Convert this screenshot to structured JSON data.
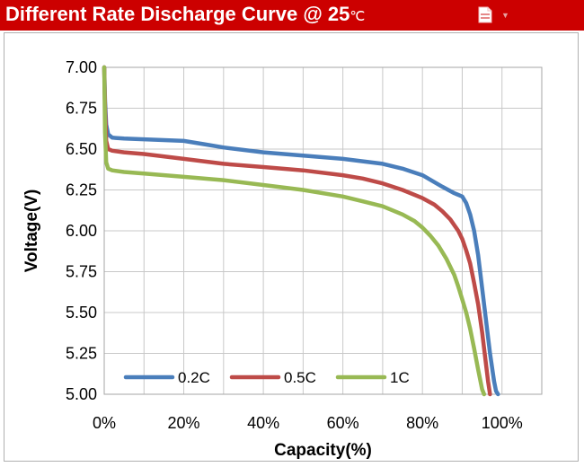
{
  "header": {
    "title": "Different Rate Discharge Curve @ 25",
    "title_unit": "℃",
    "background": "#cc0000",
    "icons": [
      "pdf-icon",
      "dropdown-arrow-icon"
    ]
  },
  "chart_data": {
    "type": "line",
    "title": "Different Rate Discharge Curve @ 25℃",
    "xlabel": "Capacity(%)",
    "ylabel": "Voltage(V)",
    "xlim": [
      0,
      110
    ],
    "ylim": [
      5.0,
      7.0
    ],
    "x_ticks": [
      0,
      20,
      40,
      60,
      80,
      100
    ],
    "x_tick_labels": [
      "0%",
      "20%",
      "40%",
      "60%",
      "80%",
      "100%"
    ],
    "y_ticks": [
      5.0,
      5.25,
      5.5,
      5.75,
      6.0,
      6.25,
      6.5,
      6.75,
      7.0
    ],
    "y_tick_labels": [
      "5.00",
      "5.25",
      "5.50",
      "5.75",
      "6.00",
      "6.25",
      "6.50",
      "6.75",
      "7.00"
    ],
    "grid": true,
    "legend_position": "bottom-left",
    "series": [
      {
        "name": "0.2C",
        "color": "#4a7ebb",
        "x": [
          0,
          0.2,
          0.5,
          1,
          2,
          5,
          10,
          20,
          25,
          30,
          40,
          50,
          60,
          70,
          75,
          80,
          85,
          88,
          90,
          91,
          92,
          93,
          94,
          95,
          96,
          97,
          98,
          98.5,
          99
        ],
        "y": [
          7.0,
          6.8,
          6.65,
          6.59,
          6.57,
          6.565,
          6.56,
          6.55,
          6.53,
          6.51,
          6.48,
          6.46,
          6.44,
          6.41,
          6.38,
          6.34,
          6.27,
          6.23,
          6.21,
          6.17,
          6.1,
          6.0,
          5.85,
          5.65,
          5.45,
          5.25,
          5.08,
          5.02,
          5.0
        ]
      },
      {
        "name": "0.5C",
        "color": "#be4b48",
        "x": [
          0,
          0.2,
          0.5,
          1,
          2,
          5,
          10,
          20,
          30,
          40,
          50,
          60,
          65,
          70,
          75,
          80,
          83,
          85,
          87,
          89,
          90,
          91,
          92,
          93,
          94,
          95,
          96,
          96.5,
          97
        ],
        "y": [
          7.0,
          6.75,
          6.55,
          6.5,
          6.49,
          6.48,
          6.47,
          6.44,
          6.41,
          6.39,
          6.37,
          6.34,
          6.32,
          6.29,
          6.25,
          6.2,
          6.16,
          6.12,
          6.07,
          6.0,
          5.95,
          5.88,
          5.8,
          5.68,
          5.55,
          5.38,
          5.18,
          5.08,
          5.0
        ]
      },
      {
        "name": "1C",
        "color": "#98b954",
        "x": [
          0,
          0.2,
          0.5,
          1,
          2,
          5,
          10,
          20,
          30,
          40,
          50,
          60,
          65,
          70,
          75,
          78,
          80,
          82,
          84,
          86,
          88,
          89,
          90,
          91,
          92,
          93,
          94,
          95,
          95.5
        ],
        "y": [
          7.0,
          6.6,
          6.42,
          6.38,
          6.37,
          6.36,
          6.35,
          6.33,
          6.31,
          6.28,
          6.25,
          6.21,
          6.18,
          6.15,
          6.1,
          6.06,
          6.02,
          5.97,
          5.91,
          5.83,
          5.73,
          5.66,
          5.58,
          5.5,
          5.4,
          5.28,
          5.15,
          5.03,
          5.0
        ]
      }
    ]
  }
}
